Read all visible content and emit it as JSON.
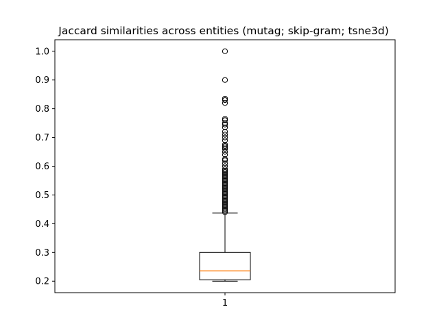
{
  "chart_data": {
    "type": "box",
    "title": "Jaccard similarities across entities (mutag; skip-gram; tsne3d)",
    "xlabel": "",
    "ylabel": "",
    "categories": [
      "1"
    ],
    "ylim": [
      0.16,
      1.04
    ],
    "yticks": [
      0.2,
      0.3,
      0.4,
      0.5,
      0.6,
      0.7,
      0.8,
      0.9,
      1.0
    ],
    "ytick_labels": [
      "0.2",
      "0.3",
      "0.4",
      "0.5",
      "0.6",
      "0.7",
      "0.8",
      "0.9",
      "1.0"
    ],
    "grid": false,
    "box": {
      "whisker_low": 0.2,
      "q1": 0.205,
      "median": 0.236,
      "q3": 0.3,
      "whisker_high": 0.437
    },
    "outliers": [
      0.44,
      0.445,
      0.45,
      0.455,
      0.46,
      0.465,
      0.47,
      0.475,
      0.48,
      0.485,
      0.49,
      0.495,
      0.5,
      0.505,
      0.51,
      0.515,
      0.52,
      0.525,
      0.53,
      0.535,
      0.54,
      0.545,
      0.55,
      0.555,
      0.56,
      0.565,
      0.57,
      0.575,
      0.58,
      0.585,
      0.59,
      0.6,
      0.61,
      0.62,
      0.625,
      0.64,
      0.65,
      0.66,
      0.665,
      0.67,
      0.675,
      0.69,
      0.7,
      0.71,
      0.72,
      0.735,
      0.745,
      0.75,
      0.76,
      0.765,
      0.82,
      0.83,
      0.835,
      0.9,
      1.0
    ],
    "colors": {
      "box": "#000000",
      "median": "#ff7f0e",
      "outlier": "#000000"
    }
  }
}
